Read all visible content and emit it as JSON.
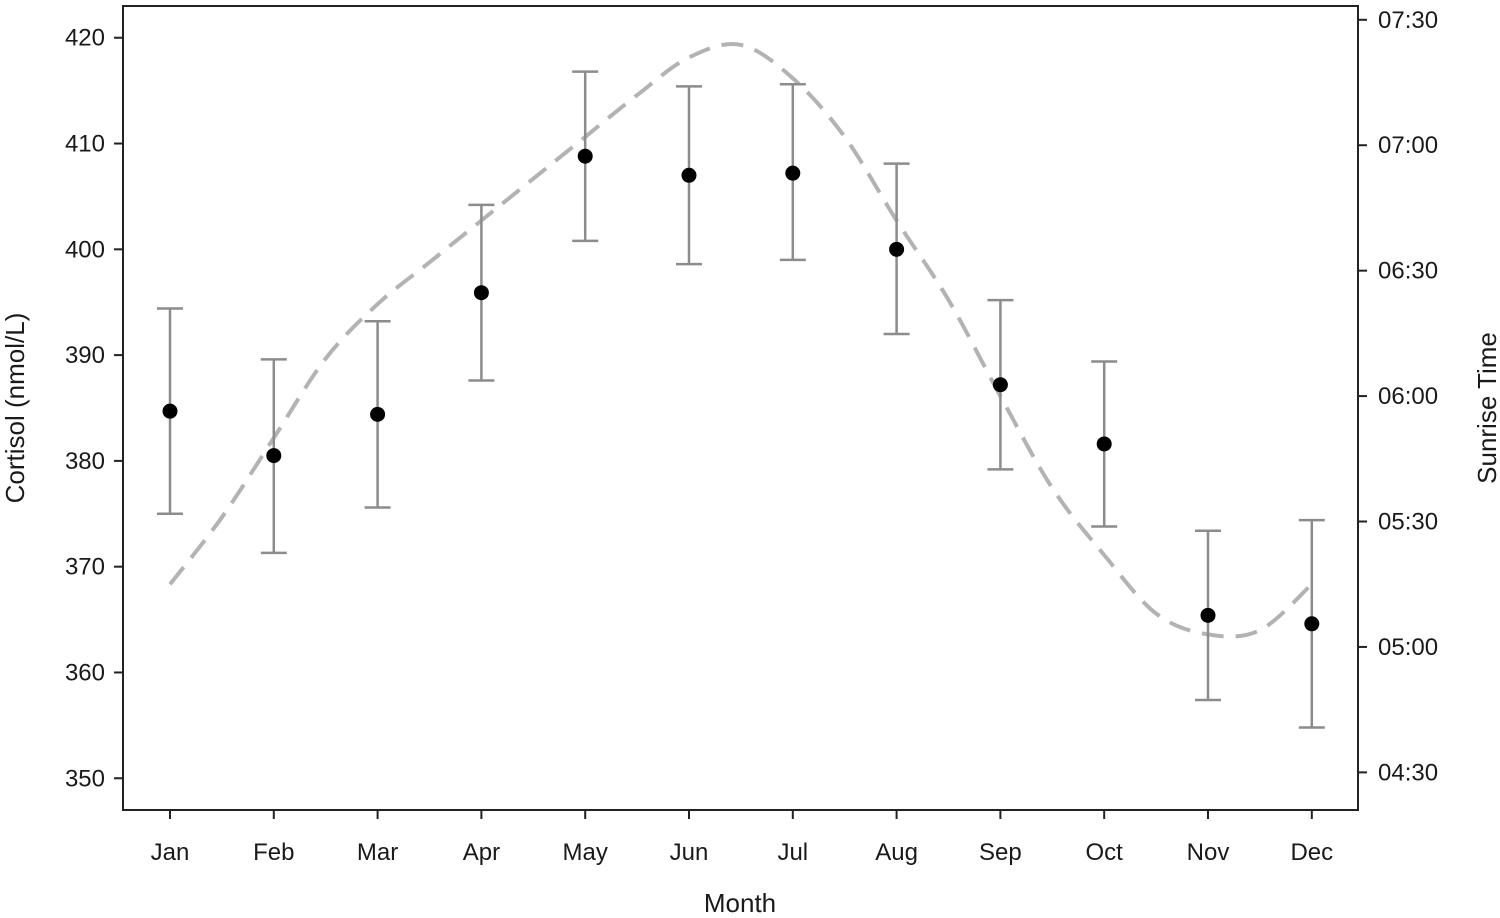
{
  "chart_data": {
    "type": "scatter",
    "title": "",
    "xlabel": "Month",
    "ylabel": "Cortisol (nmol/L)",
    "y2label": "Sunrise Time",
    "categories": [
      "Jan",
      "Feb",
      "Mar",
      "Apr",
      "May",
      "Jun",
      "Jul",
      "Aug",
      "Sep",
      "Oct",
      "Nov",
      "Dec"
    ],
    "ylim": [
      347,
      423
    ],
    "yticks": [
      350,
      360,
      370,
      380,
      390,
      400,
      410,
      420
    ],
    "y2ticks": [
      "04:30",
      "05:00",
      "05:30",
      "06:00",
      "06:30",
      "07:00",
      "07:30"
    ],
    "y2_ticks_minutes": [
      270,
      300,
      330,
      360,
      390,
      420,
      450
    ],
    "y2lim_minutes": [
      261,
      453.3
    ],
    "grid": false,
    "series": [
      {
        "type": "scatter-errorbar",
        "color": "#000000",
        "errorbar_color": "#8c8c8c",
        "values": [
          384.7,
          380.5,
          384.4,
          395.9,
          408.8,
          407.0,
          407.2,
          400.0,
          387.2,
          381.6,
          365.4,
          364.6
        ],
        "error_low": [
          375.0,
          371.3,
          375.6,
          387.6,
          400.8,
          398.6,
          399.0,
          392.0,
          379.2,
          373.8,
          357.4,
          354.8
        ],
        "error_high": [
          394.4,
          389.6,
          393.2,
          404.2,
          416.8,
          415.4,
          415.6,
          408.1,
          395.2,
          389.4,
          373.4,
          374.4
        ]
      },
      {
        "type": "line",
        "style": "dashed",
        "axis": "right",
        "color": "#b3b3b3",
        "x_month": [
          1,
          1.5,
          2,
          2.5,
          3,
          3.5,
          4,
          4.5,
          5,
          5.5,
          6,
          6.5,
          7,
          7.5,
          8,
          8.5,
          9,
          9.5,
          10,
          10.5,
          11,
          11.5,
          12
        ],
        "minutes": [
          315,
          331,
          350,
          369,
          382,
          392,
          402,
          412,
          422,
          432,
          441,
          444,
          436,
          422,
          402,
          383,
          360,
          338,
          322,
          308,
          303,
          304,
          315
        ]
      }
    ]
  }
}
